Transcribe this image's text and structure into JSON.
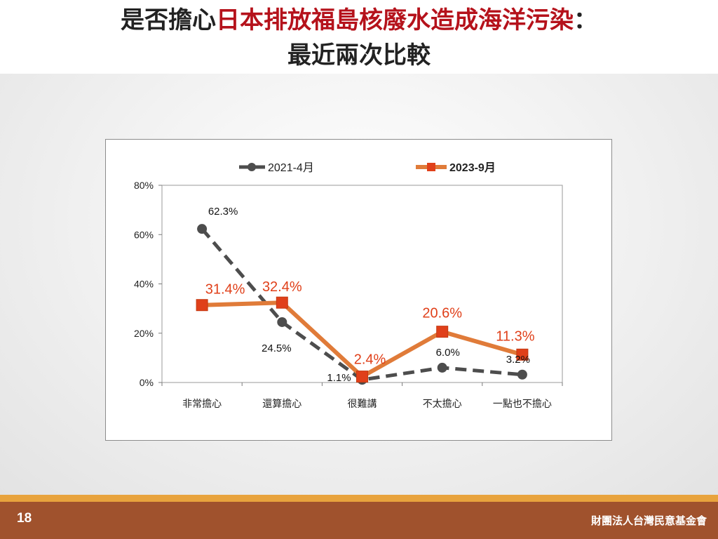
{
  "title": {
    "part1": "是否擔心",
    "highlight": "日本排放福島核廢水造成海洋污染",
    "part2": "：",
    "line2": "最近兩次比較"
  },
  "footer": {
    "page_number": "18",
    "organization": "財團法人台灣民意基金會"
  },
  "colors": {
    "title_highlight": "#b5121b",
    "series_2021": "#4d4d4d",
    "series_2023": "#e07b39",
    "marker_2023": "#e0401a",
    "label_2023": "#e0401a",
    "footer_bar": "#a0522d",
    "footer_line": "#e8a33d"
  },
  "chart_data": {
    "type": "line",
    "categories": [
      "非常擔心",
      "還算擔心",
      "很難講",
      "不太擔心",
      "一點也不擔心"
    ],
    "series": [
      {
        "name": "2021-4月",
        "values": [
          62.3,
          24.5,
          1.1,
          6.0,
          3.2
        ],
        "labels": [
          "62.3%",
          "24.5%",
          "1.1%",
          "6.0%",
          "3.2%"
        ],
        "style": "dashed",
        "marker": "circle"
      },
      {
        "name": "2023-9月",
        "values": [
          31.4,
          32.4,
          2.4,
          20.6,
          11.3
        ],
        "labels": [
          "31.4%",
          "32.4%",
          "2.4%",
          "20.6%",
          "11.3%"
        ],
        "style": "solid",
        "marker": "square"
      }
    ],
    "yticks": [
      "0%",
      "20%",
      "40%",
      "60%",
      "80%"
    ],
    "ylim": [
      0,
      80
    ],
    "grid": false,
    "legend_position": "top"
  }
}
